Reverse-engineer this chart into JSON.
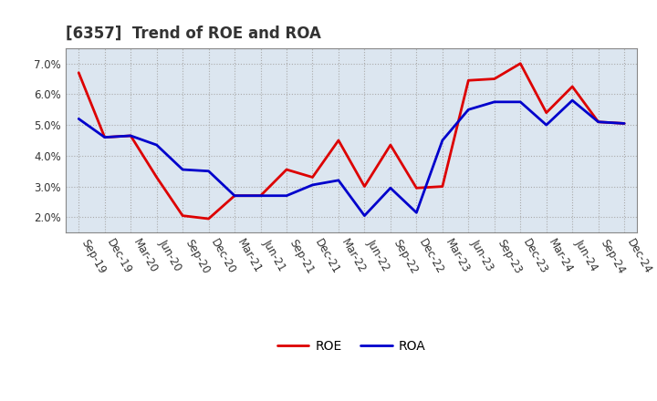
{
  "title": "[6357]  Trend of ROE and ROA",
  "labels": [
    "Sep-19",
    "Dec-19",
    "Mar-20",
    "Jun-20",
    "Sep-20",
    "Dec-20",
    "Mar-21",
    "Jun-21",
    "Sep-21",
    "Dec-21",
    "Mar-22",
    "Jun-22",
    "Sep-22",
    "Dec-22",
    "Mar-23",
    "Jun-23",
    "Sep-23",
    "Dec-23",
    "Mar-24",
    "Jun-24",
    "Sep-24",
    "Dec-24"
  ],
  "ROE": [
    6.7,
    4.6,
    4.65,
    3.3,
    2.05,
    1.95,
    2.7,
    2.7,
    3.55,
    3.3,
    4.5,
    3.0,
    4.35,
    2.95,
    3.0,
    6.45,
    6.5,
    7.0,
    5.4,
    6.25,
    5.1,
    5.05
  ],
  "ROA": [
    5.2,
    4.6,
    4.65,
    4.35,
    3.55,
    3.5,
    2.7,
    2.7,
    2.7,
    3.05,
    3.2,
    2.05,
    2.95,
    2.15,
    4.5,
    5.5,
    5.75,
    5.75,
    5.0,
    5.8,
    5.1,
    5.05
  ],
  "roe_color": "#dd0000",
  "roa_color": "#0000cc",
  "line_width": 2.0,
  "ylim": [
    1.5,
    7.5
  ],
  "yticks": [
    2.0,
    3.0,
    4.0,
    5.0,
    6.0,
    7.0
  ],
  "background_color": "#ffffff",
  "plot_bg_color": "#dce6f0",
  "grid_color": "#aaaaaa",
  "title_fontsize": 12,
  "tick_fontsize": 8.5,
  "legend_fontsize": 10,
  "title_color": "#333333"
}
